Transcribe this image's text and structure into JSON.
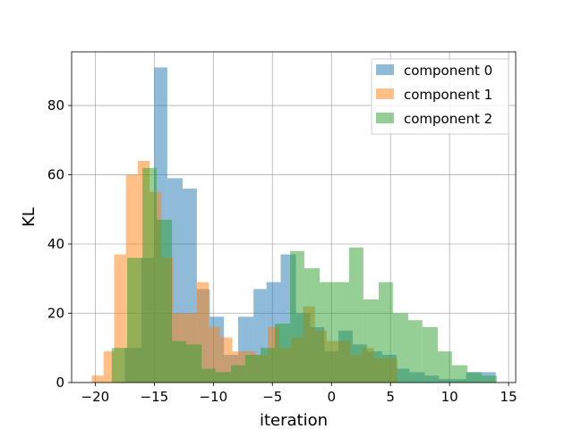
{
  "chart_data": {
    "type": "histogram",
    "xlabel": "iteration",
    "ylabel": "KL",
    "xlim": [
      -22,
      15.6
    ],
    "ylim": [
      0,
      95.5
    ],
    "xticks": [
      -20,
      -15,
      -10,
      -5,
      0,
      5,
      10,
      15
    ],
    "yticks": [
      0,
      20,
      40,
      60,
      80
    ],
    "grid": true,
    "legend": {
      "placement": "top-right"
    },
    "series": [
      {
        "name": "component 0",
        "color": "#1f77b4",
        "opacity": 0.5,
        "bins": [
          [
            -17.5,
            -16.1,
            10
          ],
          [
            -16.1,
            -15.0,
            36
          ],
          [
            -15.0,
            -13.9,
            91
          ],
          [
            -13.9,
            -12.6,
            59
          ],
          [
            -12.6,
            -11.4,
            56
          ],
          [
            -11.4,
            -10.3,
            27
          ],
          [
            -10.3,
            -9.1,
            19
          ],
          [
            -9.1,
            -7.9,
            8
          ],
          [
            -7.9,
            -6.6,
            19
          ],
          [
            -6.6,
            -5.5,
            27
          ],
          [
            -5.5,
            -4.3,
            29
          ],
          [
            -4.3,
            -3.0,
            37
          ],
          [
            -3.0,
            -1.8,
            20
          ],
          [
            -1.8,
            -0.6,
            16
          ],
          [
            -0.6,
            0.6,
            9
          ],
          [
            0.6,
            1.8,
            15
          ],
          [
            1.8,
            3.0,
            11
          ],
          [
            3.0,
            4.3,
            9
          ],
          [
            4.3,
            5.5,
            8
          ],
          [
            5.5,
            6.6,
            4
          ],
          [
            6.6,
            7.9,
            3
          ],
          [
            7.9,
            9.1,
            2
          ],
          [
            9.1,
            10.3,
            1
          ],
          [
            10.3,
            11.4,
            1
          ],
          [
            11.4,
            12.6,
            3
          ],
          [
            12.6,
            13.9,
            3
          ]
        ]
      },
      {
        "name": "component 1",
        "color": "#ff7f0e",
        "opacity": 0.5,
        "bins": [
          [
            -20.3,
            -19.3,
            2
          ],
          [
            -19.3,
            -18.4,
            9
          ],
          [
            -18.4,
            -17.4,
            37
          ],
          [
            -17.4,
            -16.4,
            60
          ],
          [
            -16.4,
            -15.4,
            64
          ],
          [
            -15.4,
            -14.4,
            55
          ],
          [
            -14.4,
            -13.4,
            36
          ],
          [
            -13.4,
            -12.4,
            20
          ],
          [
            -12.4,
            -11.4,
            20
          ],
          [
            -11.4,
            -10.4,
            29
          ],
          [
            -10.4,
            -9.4,
            16
          ],
          [
            -9.4,
            -8.4,
            13
          ],
          [
            -8.4,
            -7.4,
            9
          ],
          [
            -7.4,
            -6.4,
            9
          ],
          [
            -6.4,
            -5.4,
            8
          ],
          [
            -5.4,
            -4.4,
            16
          ],
          [
            -4.4,
            -3.4,
            10
          ],
          [
            -3.4,
            -2.4,
            13
          ],
          [
            -2.4,
            -1.4,
            22
          ],
          [
            -1.4,
            -0.4,
            15
          ],
          [
            -0.4,
            0.6,
            12
          ],
          [
            0.6,
            1.6,
            12
          ],
          [
            1.6,
            2.6,
            8
          ],
          [
            2.6,
            3.6,
            10
          ],
          [
            3.6,
            4.6,
            7
          ],
          [
            4.6,
            5.6,
            7
          ]
        ]
      },
      {
        "name": "component 2",
        "color": "#2ca02c",
        "opacity": 0.5,
        "bins": [
          [
            -18.6,
            -17.3,
            10
          ],
          [
            -17.3,
            -16.0,
            36
          ],
          [
            -16.0,
            -14.8,
            62
          ],
          [
            -14.8,
            -13.5,
            47
          ],
          [
            -13.5,
            -12.3,
            12
          ],
          [
            -12.3,
            -11.0,
            11
          ],
          [
            -11.0,
            -9.8,
            4
          ],
          [
            -9.8,
            -8.5,
            3
          ],
          [
            -8.5,
            -7.3,
            5
          ],
          [
            -7.3,
            -6.0,
            8
          ],
          [
            -6.0,
            -4.8,
            10
          ],
          [
            -4.8,
            -3.5,
            17
          ],
          [
            -3.5,
            -2.3,
            38
          ],
          [
            -2.3,
            -1.0,
            33
          ],
          [
            -1.0,
            0.2,
            29
          ],
          [
            0.2,
            1.5,
            29
          ],
          [
            1.5,
            2.7,
            39
          ],
          [
            2.7,
            4.0,
            24
          ],
          [
            4.0,
            5.2,
            29
          ],
          [
            5.2,
            6.5,
            20
          ],
          [
            6.5,
            7.7,
            18
          ],
          [
            7.7,
            9.0,
            16
          ],
          [
            9.0,
            10.2,
            9
          ],
          [
            10.2,
            11.5,
            5
          ],
          [
            11.5,
            12.7,
            3
          ],
          [
            12.7,
            14.0,
            2
          ]
        ]
      }
    ]
  }
}
